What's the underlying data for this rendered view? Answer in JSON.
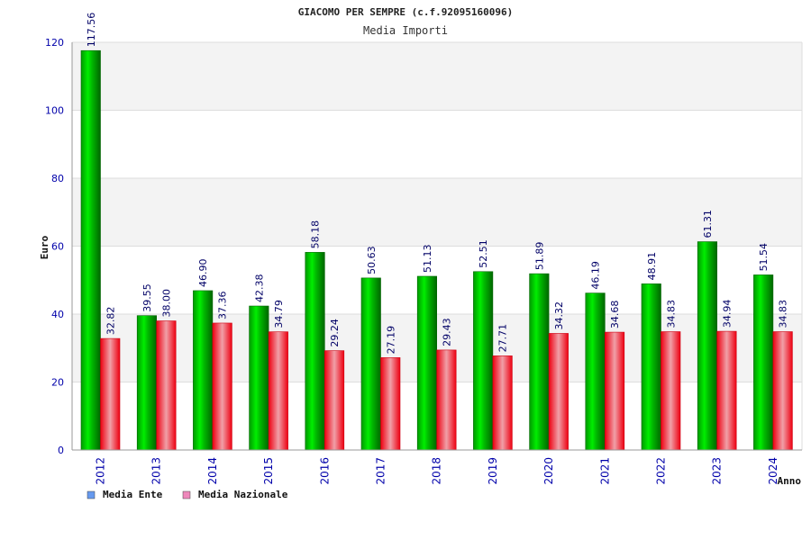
{
  "chart_data": {
    "type": "bar",
    "title": "GIACOMO PER SEMPRE (c.f.92095160096)",
    "subtitle": "Media Importi",
    "xlabel": "Anno",
    "ylabel": "Euro",
    "ylim": [
      0,
      120
    ],
    "yticks": [
      0,
      20,
      40,
      60,
      80,
      100,
      120
    ],
    "grid": true,
    "legend_position": "bottom-left",
    "categories": [
      "2012",
      "2013",
      "2014",
      "2015",
      "2016",
      "2017",
      "2018",
      "2019",
      "2020",
      "2021",
      "2022",
      "2023",
      "2024"
    ],
    "series": [
      {
        "name": "Media Ente",
        "color": "#00cc00",
        "legend_color": "#6699ee",
        "values": [
          117.56,
          39.55,
          46.9,
          42.38,
          58.18,
          50.63,
          51.13,
          52.51,
          51.89,
          46.19,
          48.91,
          61.31,
          51.54
        ],
        "labels": [
          "117.56",
          "39.55",
          "46.90",
          "42.38",
          "58.18",
          "50.63",
          "51.13",
          "52.51",
          "51.89",
          "46.19",
          "48.91",
          "61.31",
          "51.54"
        ]
      },
      {
        "name": "Media Nazionale",
        "color": "#ee2233",
        "legend_color": "#ee88bb",
        "values": [
          32.82,
          38.0,
          37.36,
          34.79,
          29.24,
          27.19,
          29.43,
          27.71,
          34.32,
          34.68,
          34.83,
          34.94,
          34.83
        ],
        "labels": [
          "32.82",
          "38.00",
          "37.36",
          "34.79",
          "29.24",
          "27.19",
          "29.43",
          "27.71",
          "34.32",
          "34.68",
          "34.83",
          "34.94",
          "34.83"
        ]
      }
    ]
  }
}
